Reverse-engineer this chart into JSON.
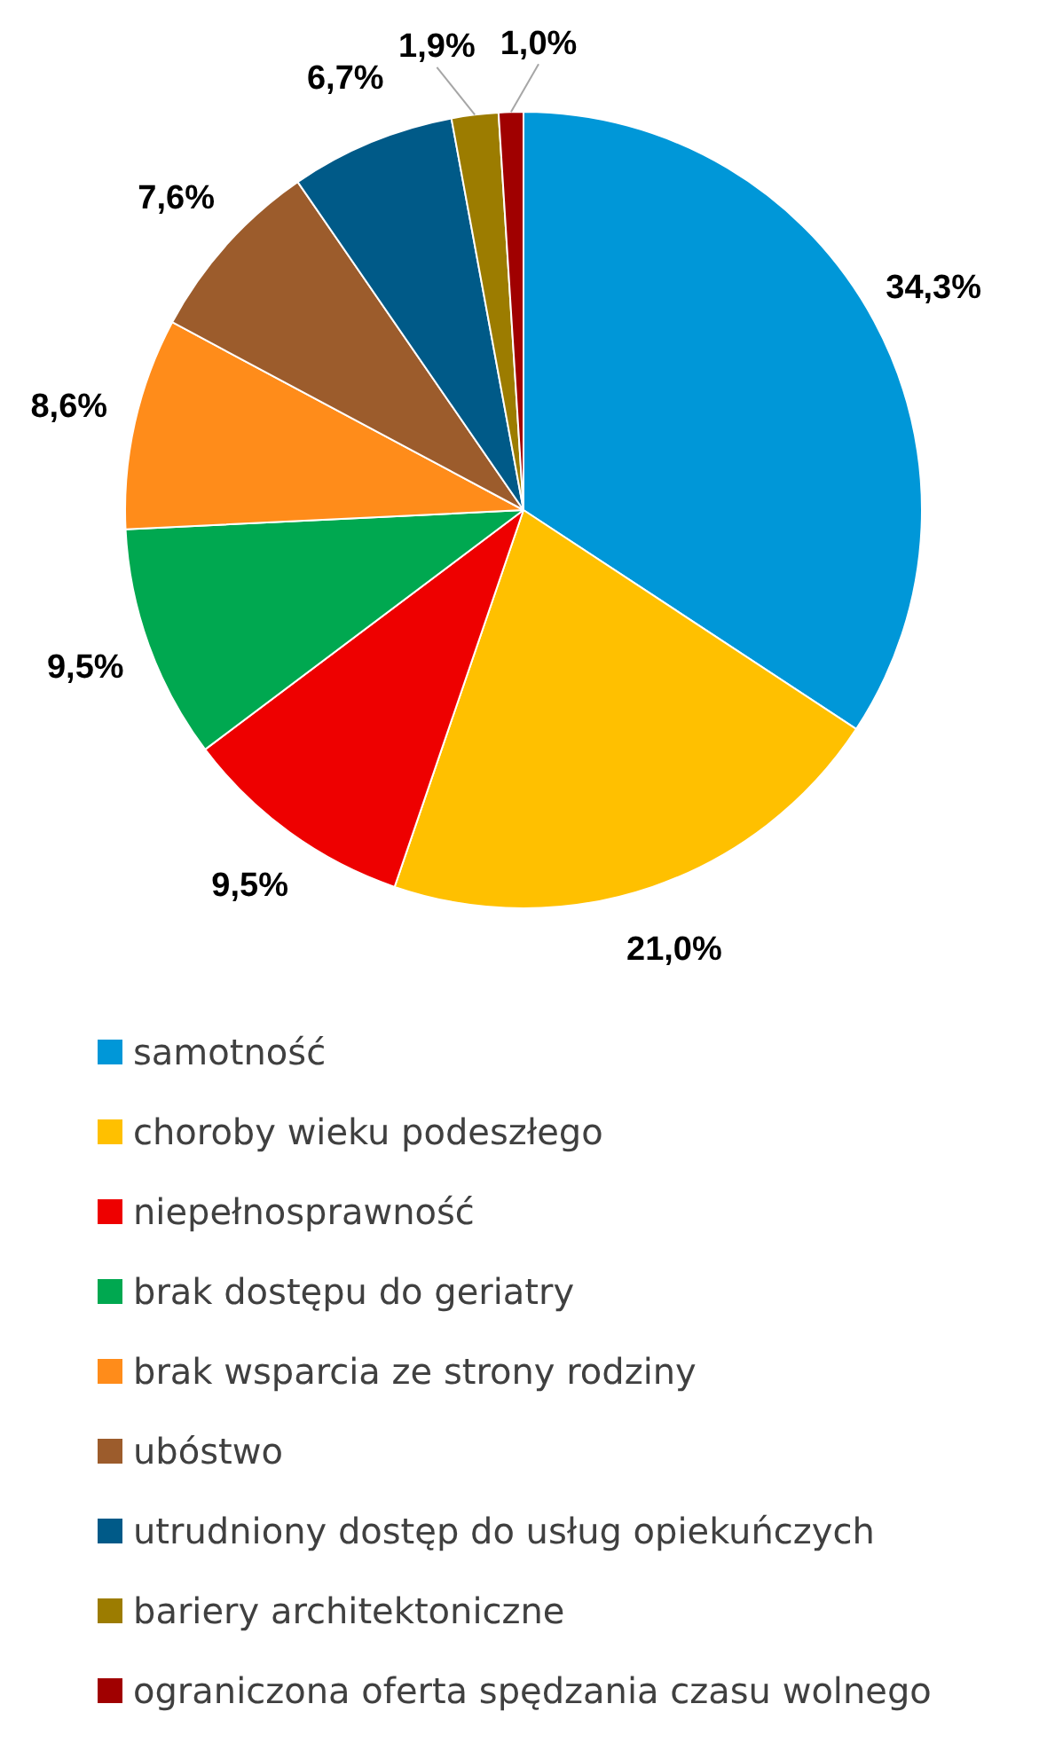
{
  "chart_data": {
    "type": "pie",
    "categories": [
      "samotność",
      "choroby wieku podeszłego",
      "niepełnosprawność",
      "brak dostępu do geriatry",
      "brak wsparcia ze strony rodziny",
      "ubóstwo",
      "utrudniony dostęp do usług opiekuńczych",
      "bariery architektoniczne",
      "ograniczona oferta spędzania czasu wolnego"
    ],
    "values": [
      34.3,
      21.0,
      9.5,
      9.5,
      8.6,
      7.6,
      6.7,
      1.9,
      1.0
    ],
    "value_labels": [
      "34,3%",
      "21,0%",
      "9,5%",
      "9,5%",
      "8,6%",
      "7,6%",
      "6,7%",
      "1,9%",
      "1,0%"
    ],
    "colors": [
      "#0097d8",
      "#ffc000",
      "#ee0000",
      "#00a850",
      "#ff8c1a",
      "#9c5c2c",
      "#005a88",
      "#9c7c00",
      "#a00000"
    ],
    "legend": "bottom"
  }
}
